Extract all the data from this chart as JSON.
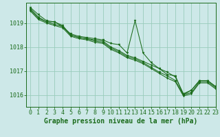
{
  "title": "Graphe pression niveau de la mer (hPa)",
  "background_color": "#cde8e8",
  "plot_bg_color": "#cde8e8",
  "grid_color": "#99ccbb",
  "line_color": "#1a6b1a",
  "marker_color": "#1a6b1a",
  "xlim": [
    -0.5,
    23
  ],
  "ylim": [
    1015.5,
    1019.85
  ],
  "yticks": [
    1016,
    1017,
    1018,
    1019
  ],
  "xticks": [
    0,
    1,
    2,
    3,
    4,
    5,
    6,
    7,
    8,
    9,
    10,
    11,
    12,
    13,
    14,
    15,
    16,
    17,
    18,
    19,
    20,
    21,
    22,
    23
  ],
  "series": [
    [
      1019.65,
      1019.35,
      1019.1,
      1019.05,
      1018.85,
      1018.55,
      1018.45,
      1018.4,
      1018.35,
      1018.3,
      1018.15,
      1018.1,
      1017.75,
      1019.1,
      1017.75,
      1017.35,
      1017.1,
      1016.85,
      1016.8,
      1016.0,
      1016.2,
      1016.6,
      1016.6,
      1016.35
    ],
    [
      1019.6,
      1019.25,
      1019.05,
      1019.05,
      1018.9,
      1018.5,
      1018.4,
      1018.35,
      1018.3,
      1018.25,
      1018.0,
      1017.85,
      1017.65,
      1017.55,
      1017.4,
      1017.25,
      1017.1,
      1016.95,
      1016.75,
      1016.05,
      1016.2,
      1016.6,
      1016.6,
      1016.35
    ],
    [
      1019.55,
      1019.2,
      1019.05,
      1018.95,
      1018.85,
      1018.5,
      1018.4,
      1018.35,
      1018.25,
      1018.2,
      1017.95,
      1017.8,
      1017.6,
      1017.5,
      1017.35,
      1017.15,
      1016.95,
      1016.8,
      1016.6,
      1016.0,
      1016.1,
      1016.55,
      1016.55,
      1016.3
    ],
    [
      1019.5,
      1019.15,
      1019.0,
      1018.9,
      1018.8,
      1018.45,
      1018.35,
      1018.3,
      1018.2,
      1018.15,
      1017.9,
      1017.75,
      1017.55,
      1017.45,
      1017.3,
      1017.1,
      1016.9,
      1016.7,
      1016.55,
      1015.95,
      1016.05,
      1016.5,
      1016.5,
      1016.25
    ]
  ],
  "tick_fontsize": 6.0,
  "title_fontsize": 7.0
}
